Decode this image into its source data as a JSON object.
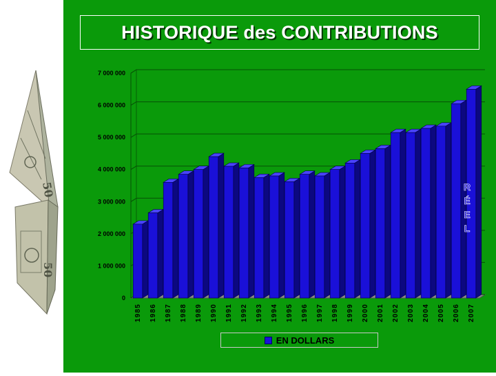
{
  "slide": {
    "title_main": "HISTORIQUE",
    "title_mid": "des",
    "title_end": "CONTRIBUTIONS"
  },
  "colors": {
    "background": "#0a9a0a",
    "bar": "#1a10d8",
    "annotation": "#1a10d8",
    "title": "#ffffff"
  },
  "illustration": {
    "icon": "dollar-bill-house-icon"
  },
  "chart_data": {
    "type": "bar",
    "title": "",
    "xlabel": "",
    "ylabel": "",
    "ylim": [
      0,
      7000000
    ],
    "yticks": [
      0,
      1000000,
      2000000,
      3000000,
      4000000,
      5000000,
      6000000,
      7000000
    ],
    "ytick_labels": [
      "0",
      "1 000 000",
      "2 000 000",
      "3 000 000",
      "4 000 000",
      "5 000 000",
      "6 000 000",
      "7 000 000"
    ],
    "grid": true,
    "legend_position": "bottom",
    "categories": [
      "1985",
      "1986",
      "1987",
      "1988",
      "1989",
      "1990",
      "1991",
      "1992",
      "1993",
      "1994",
      "1995",
      "1996",
      "1997",
      "1998",
      "1999",
      "2000",
      "2001",
      "2002",
      "2003",
      "2004",
      "2005",
      "2006",
      "2007"
    ],
    "series": [
      {
        "name": "EN DOLLARS",
        "values": [
          2300000,
          2650000,
          3600000,
          3850000,
          4000000,
          4400000,
          4100000,
          4050000,
          3750000,
          3800000,
          3620000,
          3850000,
          3800000,
          4000000,
          4200000,
          4500000,
          4650000,
          5150000,
          5150000,
          5280000,
          5350000,
          6050000,
          6500000
        ]
      }
    ],
    "annotations": [
      {
        "text": "RÉEL",
        "category": "2007"
      }
    ]
  }
}
